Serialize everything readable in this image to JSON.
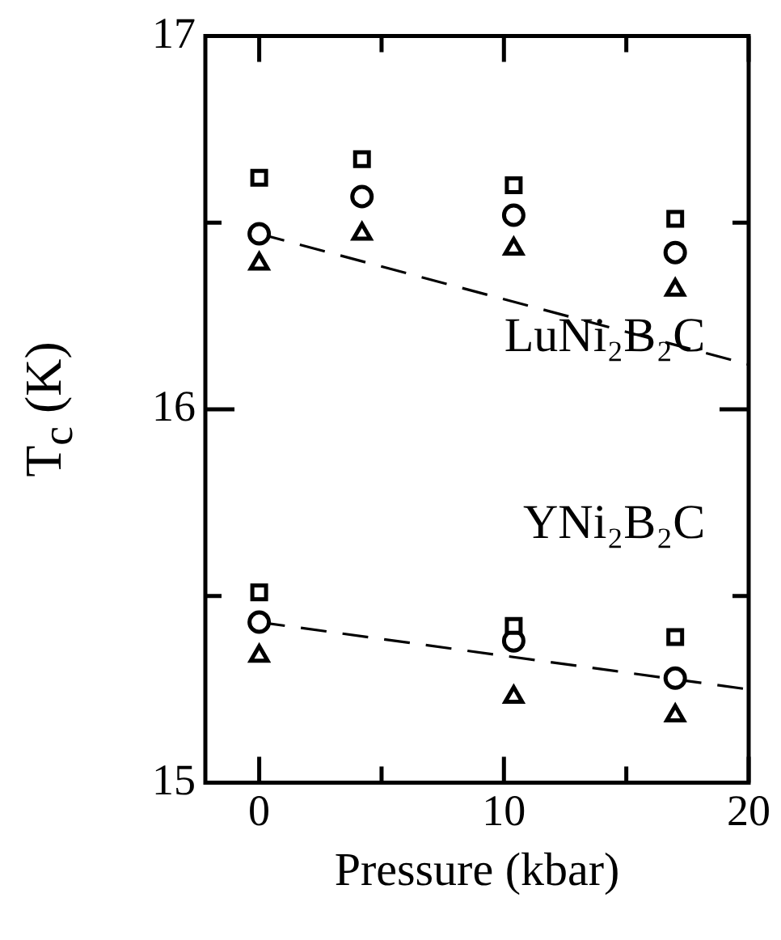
{
  "chart_data": {
    "type": "scatter",
    "xlabel": "Pressure (kbar)",
    "ylabel": "T$_{c}$ (K)",
    "xlim": [
      -2.2,
      20
    ],
    "ylim": [
      15,
      17
    ],
    "xticks": [
      0,
      {
        "value": 5,
        "label": null
      },
      10,
      {
        "value": 15,
        "label": null
      },
      20
    ],
    "yticks": [
      15,
      {
        "value": 15.5,
        "label": null
      },
      16,
      {
        "value": 16.5,
        "label": null
      },
      17
    ],
    "grid": false,
    "legend": false,
    "series": [
      {
        "marker": "square",
        "color": "#000000",
        "x": [
          0,
          4.2,
          10.4,
          17
        ],
        "values": [
          16.62,
          16.67,
          16.6,
          16.51
        ]
      },
      {
        "marker": "circle",
        "color": "#000000",
        "x": [
          0,
          4.2,
          10.4,
          17
        ],
        "values": [
          16.47,
          16.57,
          16.52,
          16.42
        ]
      },
      {
        "marker": "triangle",
        "color": "#000000",
        "x": [
          0,
          4.2,
          10.4,
          17
        ],
        "values": [
          16.39,
          16.47,
          16.43,
          16.32
        ]
      },
      {
        "type": "line",
        "line_style": "dashed",
        "marker": "none",
        "color": "#000000",
        "x": [
          0,
          20
        ],
        "values": [
          16.47,
          16.12
        ]
      },
      {
        "marker": "square",
        "color": "#000000",
        "x": [
          0,
          10.4,
          17
        ],
        "values": [
          15.51,
          15.42,
          15.39
        ]
      },
      {
        "marker": "circle",
        "color": "#000000",
        "x": [
          0,
          10.4,
          17
        ],
        "values": [
          15.43,
          15.38,
          15.28
        ]
      },
      {
        "marker": "triangle",
        "color": "#000000",
        "x": [
          0,
          10.4,
          17
        ],
        "values": [
          15.34,
          15.23,
          15.18
        ]
      },
      {
        "type": "line",
        "line_style": "dashed",
        "marker": "none",
        "color": "#000000",
        "x": [
          0,
          20
        ],
        "values": [
          15.43,
          15.25
        ]
      }
    ],
    "annotations": [
      "LuNi₂B₂C",
      "YNi₂B₂C"
    ]
  }
}
